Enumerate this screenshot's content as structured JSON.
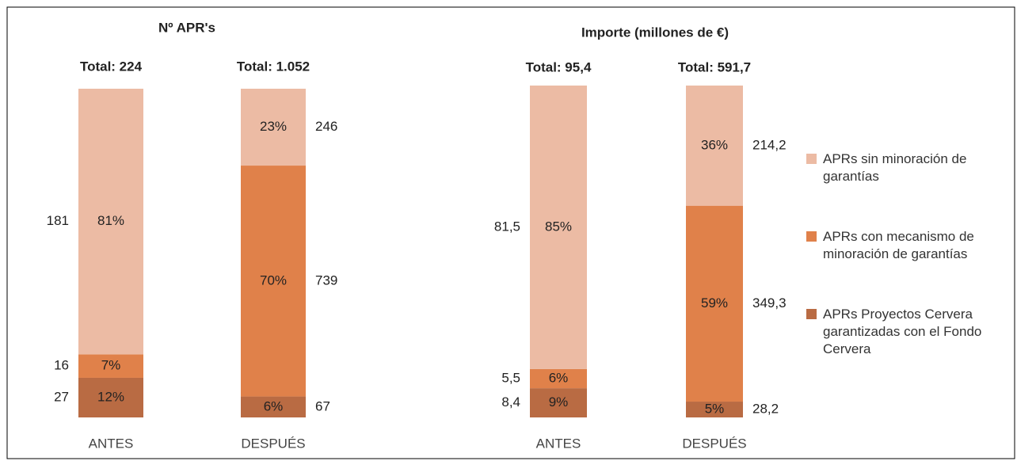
{
  "chart_data": [
    {
      "type": "bar",
      "stacked": true,
      "title": "Nº APR's",
      "categories": [
        "ANTES",
        "DESPUÉS"
      ],
      "totals": [
        224,
        1052
      ],
      "total_labels": [
        "Total: 224",
        "Total: 1.052"
      ],
      "series": [
        {
          "color": "#b96b43",
          "values": [
            27,
            67
          ],
          "shares": [
            12,
            6
          ],
          "share_labels": [
            "12%",
            "6%"
          ]
        },
        {
          "color": "#e0814a",
          "values": [
            16,
            739
          ],
          "shares": [
            7,
            70
          ],
          "share_labels": [
            "7%",
            "70%"
          ]
        },
        {
          "color": "#ecbba4",
          "values": [
            181,
            246
          ],
          "shares": [
            81,
            23
          ],
          "share_labels": [
            "81%",
            "23%"
          ]
        }
      ]
    },
    {
      "type": "bar",
      "stacked": true,
      "title": "Importe (millones de €)",
      "categories": [
        "ANTES",
        "DESPUÉS"
      ],
      "totals": [
        95.4,
        591.7
      ],
      "total_labels": [
        "Total: 95,4",
        "Total: 591,7"
      ],
      "series": [
        {
          "name": "APRs Proyectos Cervera garantizadas con el Fondo Cervera",
          "color": "#b96b43",
          "values": [
            8.4,
            28.2
          ],
          "value_labels": [
            "8,4",
            "28,2"
          ],
          "shares": [
            9,
            5
          ],
          "share_labels": [
            "9%",
            "5%"
          ]
        },
        {
          "name": "APRs con mecanismo de minoración de garantías",
          "color": "#e0814a",
          "values": [
            5.5,
            349.3
          ],
          "value_labels": [
            "5,5",
            "349,3"
          ],
          "shares": [
            6,
            59
          ],
          "share_labels": [
            "6%",
            "59%"
          ]
        },
        {
          "name": "APRs sin minoración de garantías",
          "color": "#ecbba4",
          "values": [
            81.5,
            214.2
          ],
          "value_labels": [
            "81,5",
            "214,2"
          ],
          "shares": [
            85,
            36
          ],
          "share_labels": [
            "85%",
            "36%"
          ]
        }
      ]
    }
  ]
}
